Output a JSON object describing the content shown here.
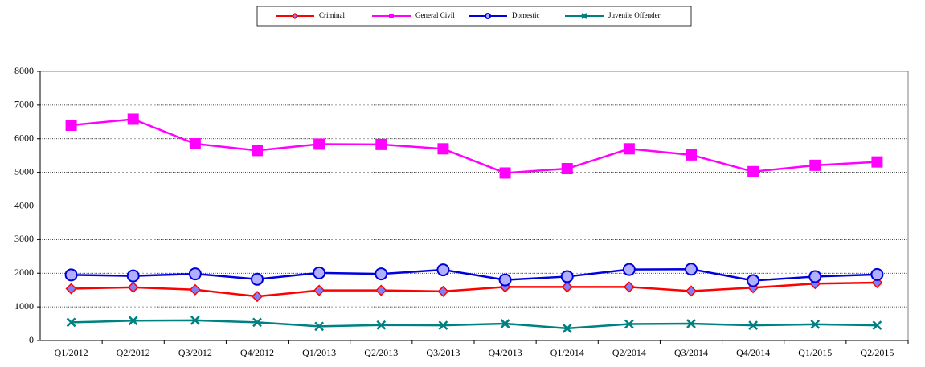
{
  "chart_data": {
    "type": "line",
    "categories": [
      "Q1/2012",
      "Q2/2012",
      "Q3/2012",
      "Q4/2012",
      "Q1/2013",
      "Q2/2013",
      "Q3/2013",
      "Q4/2013",
      "Q1/2014",
      "Q2/2014",
      "Q3/2014",
      "Q4/2014",
      "Q1/2015",
      "Q2/2015"
    ],
    "series": [
      {
        "name": "Criminal",
        "color": "#ff0000",
        "marker": "diamond",
        "values": [
          1540,
          1580,
          1510,
          1310,
          1490,
          1490,
          1460,
          1590,
          1590,
          1590,
          1470,
          1570,
          1690,
          1720
        ]
      },
      {
        "name": "General Civil",
        "color": "#ff00ff",
        "marker": "square",
        "values": [
          6400,
          6580,
          5850,
          5650,
          5840,
          5830,
          5700,
          4980,
          5110,
          5700,
          5520,
          5020,
          5210,
          5310
        ]
      },
      {
        "name": "Domestic",
        "color": "#0000dd",
        "marker": "circle",
        "values": [
          1950,
          1920,
          1980,
          1820,
          2010,
          1980,
          2100,
          1800,
          1900,
          2110,
          2120,
          1780,
          1900,
          1960
        ]
      },
      {
        "name": "Juvenile Offender",
        "color": "#008080",
        "marker": "cross",
        "values": [
          540,
          590,
          600,
          540,
          420,
          460,
          450,
          500,
          360,
          490,
          500,
          450,
          480,
          450
        ]
      }
    ],
    "ylim": [
      0,
      8000
    ],
    "yticks": [
      0,
      1000,
      2000,
      3000,
      4000,
      5000,
      6000,
      7000,
      8000
    ],
    "grid": true
  }
}
